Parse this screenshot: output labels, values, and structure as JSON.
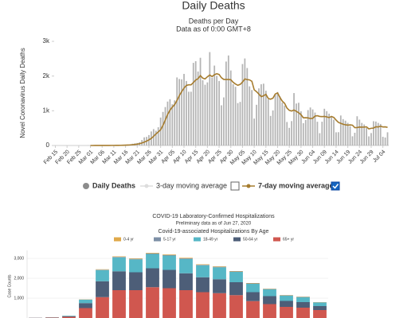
{
  "chart_data": [
    {
      "type": "combo",
      "title": "Daily Deaths",
      "subtitle": "Deaths per Day",
      "note": "Data as of 0:00 GMT+8",
      "y_label": "Novel Coronavirus Daily Deaths",
      "hidden_series": "3-day moving average",
      "categories": [
        "Feb 15",
        null,
        null,
        null,
        null,
        "Feb 20",
        null,
        null,
        null,
        null,
        "Feb 25",
        null,
        null,
        null,
        null,
        "Mar 01",
        null,
        null,
        null,
        null,
        "Mar 06",
        null,
        null,
        null,
        null,
        "Mar 11",
        null,
        null,
        null,
        null,
        "Mar 16",
        null,
        null,
        null,
        null,
        "Mar 21",
        null,
        null,
        null,
        null,
        "Mar 26",
        null,
        null,
        null,
        null,
        "Mar 31",
        null,
        null,
        null,
        null,
        "Apr 05",
        null,
        null,
        null,
        null,
        "Apr 10",
        null,
        null,
        null,
        null,
        "Apr 15",
        null,
        null,
        null,
        null,
        "Apr 20",
        null,
        null,
        null,
        null,
        "Apr 25",
        null,
        null,
        null,
        null,
        "Apr 30",
        null,
        null,
        null,
        null,
        "May 05",
        null,
        null,
        null,
        null,
        "May 10",
        null,
        null,
        null,
        null,
        "May 15",
        null,
        null,
        null,
        null,
        "May 20",
        null,
        null,
        null,
        null,
        "May 25",
        null,
        null,
        null,
        null,
        "May 30",
        null,
        null,
        null,
        null,
        "Jun 04",
        null,
        null,
        null,
        null,
        "Jun 09",
        null,
        null,
        null,
        null,
        "Jun 14",
        null,
        null,
        null,
        null,
        "Jun 19",
        null,
        null,
        null,
        null,
        "Jun 24",
        null,
        null,
        null,
        null,
        "Jun 29",
        null,
        null,
        null,
        null,
        "Jul 04",
        null,
        null
      ],
      "series": [
        {
          "name": "Daily Deaths",
          "kind": "bar",
          "color": "#b4b4b4",
          "legend_color": "#8c8c8c",
          "values": [
            0,
            0,
            0,
            0,
            0,
            0,
            0,
            0,
            0,
            0,
            0,
            0,
            0,
            0,
            1,
            0,
            1,
            4,
            1,
            2,
            1,
            2,
            3,
            4,
            3,
            5,
            7,
            9,
            11,
            16,
            21,
            25,
            35,
            50,
            62,
            73,
            94,
            158,
            235,
            248,
            300,
            405,
            471,
            424,
            525,
            805,
            967,
            1107,
            1265,
            1333,
            1188,
            1300,
            1960,
            1915,
            1906,
            2062,
            1858,
            1548,
            1549,
            2380,
            2429,
            2131,
            2526,
            1880,
            1749,
            1817,
            2690,
            1954,
            2301,
            2006,
            1858,
            1157,
            1385,
            2418,
            2593,
            2161,
            1766,
            1690,
            1221,
            1255,
            2346,
            2506,
            2231,
            1703,
            1597,
            775,
            1172,
            1645,
            1764,
            1780,
            1577,
            1329,
            852,
            1010,
            1463,
            1540,
            1413,
            1236,
            1149,
            677,
            508,
            703,
            1510,
            1209,
            1231,
            984,
            641,
            733,
            1019,
            1095,
            1039,
            948,
            684,
            354,
            685,
            1058,
            989,
            916,
            849,
            743,
            380,
            383,
            864,
            759,
            715,
            653,
            557,
            265,
            366,
            842,
            745,
            650,
            605,
            503,
            263,
            358,
            700,
            690,
            650,
            620,
            250,
            230,
            380
          ]
        },
        {
          "name": "7-day moving average",
          "kind": "line",
          "color": "#a67c2e",
          "legend_color": "#a67c2e",
          "values": [
            null,
            null,
            null,
            null,
            null,
            null,
            null,
            null,
            null,
            null,
            null,
            null,
            null,
            null,
            null,
            0,
            0,
            1,
            1,
            1,
            2,
            2,
            2,
            2,
            3,
            3,
            4,
            5,
            6,
            8,
            10,
            13,
            17,
            23,
            30,
            38,
            52,
            71,
            98,
            126,
            161,
            205,
            264,
            332,
            391,
            452,
            577,
            735,
            894,
            1017,
            1106,
            1177,
            1298,
            1437,
            1551,
            1652,
            1730,
            1748,
            1747,
            1812,
            1886,
            1926,
            2012,
            1940,
            1918,
            1979,
            2030,
            1986,
            2039,
            2066,
            2045,
            1951,
            1902,
            1903,
            1902,
            1896,
            1820,
            1771,
            1734,
            1760,
            1827,
            1918,
            1898,
            1890,
            1850,
            1604,
            1550,
            1481,
            1408,
            1431,
            1473,
            1355,
            1333,
            1362,
            1484,
            1513,
            1383,
            1277,
            1213,
            1079,
            1012,
            994,
            1022,
            983,
            944,
            888,
            798,
            801,
            795,
            776,
            782,
            847,
            856,
            838,
            832,
            838,
            825,
            803,
            837,
            808,
            731,
            665,
            639,
            613,
            596,
            585,
            593,
            585,
            513,
            517,
            531,
            529,
            532,
            537,
            478,
            495,
            501,
            540,
            533,
            555,
            535,
            536,
            523
          ]
        }
      ],
      "ylim": [
        0,
        3000
      ],
      "yticks": [
        0,
        {
          "value": 1000,
          "label": "1k"
        },
        {
          "value": 2000,
          "label": "2k"
        },
        {
          "value": 3000,
          "label": "3k"
        }
      ],
      "grid": false
    },
    {
      "type": "bar",
      "stacked": true,
      "title": "COVID-19 Laboratory-Confirmed Hospitalizations",
      "subtitle": "Preliminary data as of Jun 27, 2020",
      "chart_title": "Covid-19-associated Hospitalizations By Age",
      "y_label": "Case Counts",
      "categories": [
        null,
        null,
        null,
        null,
        null,
        null,
        null,
        null,
        null,
        null,
        null,
        null,
        null,
        null,
        null,
        null,
        null,
        null
      ],
      "series": [
        {
          "name": "0-4 yr",
          "color": "#e0a94a",
          "values": [
            0,
            0,
            2,
            10,
            20,
            25,
            25,
            30,
            30,
            30,
            25,
            25,
            20,
            20,
            15,
            15,
            15,
            10
          ]
        },
        {
          "name": "5-17 yr",
          "color": "#7d8fa6",
          "values": [
            0,
            0,
            3,
            10,
            20,
            25,
            25,
            30,
            30,
            30,
            25,
            25,
            20,
            20,
            15,
            15,
            15,
            10
          ]
        },
        {
          "name": "18-49 yr",
          "color": "#56b7c6",
          "values": [
            5,
            10,
            25,
            170,
            560,
            700,
            650,
            720,
            720,
            720,
            600,
            600,
            520,
            420,
            350,
            270,
            250,
            180
          ]
        },
        {
          "name": "50-64 yr",
          "color": "#4d5e78",
          "values": [
            5,
            10,
            30,
            250,
            800,
            950,
            900,
            950,
            920,
            850,
            750,
            700,
            650,
            450,
            400,
            300,
            280,
            200
          ]
        },
        {
          "name": "65+ yr",
          "color": "#d0574f",
          "values": [
            10,
            20,
            60,
            500,
            1050,
            1400,
            1400,
            1550,
            1500,
            1400,
            1300,
            1250,
            1150,
            850,
            700,
            560,
            520,
            400
          ]
        }
      ],
      "ylim": [
        0,
        3400
      ],
      "yticks": [
        {
          "value": 1000,
          "label": "1,000"
        },
        {
          "value": 2000,
          "label": "2,000"
        },
        {
          "value": 3000,
          "label": "3,000"
        }
      ],
      "grid": true
    }
  ]
}
